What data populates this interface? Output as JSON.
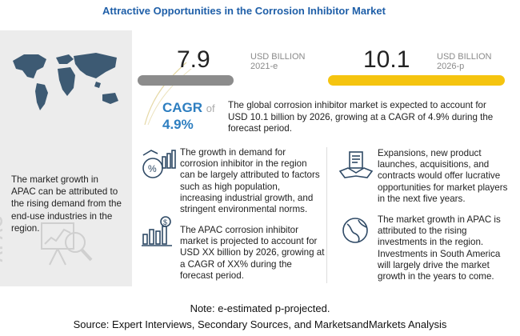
{
  "title": "Attractive Opportunities in the Corrosion Inhibitor Market",
  "left_panel": {
    "apac_text": "The market growth in APAC can be attributed to the rising demand from the end-use industries in the region.",
    "vertical_label": "APAC"
  },
  "metrics": {
    "value_2021": "7.9",
    "label_2021_unit": "USD BILLION",
    "label_2021_year": "2021-e",
    "value_2026": "10.1",
    "label_2026_unit": "USD BILLION",
    "label_2026_year": "2026-p"
  },
  "cagr": {
    "label": "CAGR",
    "of": "of",
    "value": "4.9%",
    "text": "The global corrosion inhibitor market is expected to account for USD 10.1 billion  by 2026, growing at a CAGR of 4.9% during the forecast period."
  },
  "cards": {
    "growth": "The growth in demand for corrosion inhibitor in the region can be largely attributed to factors such as high population, increasing industrial growth, and stringent environmental norms.",
    "apac_projection": "The APAC corrosion inhibitor market is projected to account for USD XX billion by 2026, growing at a CAGR of XX% during the forecast period.",
    "expansions": "Expansions, new product launches, acquisitions, and contracts would offer lucrative opportunities for market players in the next five years.",
    "investments": "The market growth in APAC is attributed to the rising investments in the region. Investments in South America will largely drive the market growth in the years to come."
  },
  "footer": {
    "note": "Note: e-estimated p-projected.",
    "source": "Source: Expert Interviews, Secondary Sources, and MarketsandMarkets Analysis"
  },
  "colors": {
    "title_blue": "#1f5fa8",
    "cagr_blue": "#2d7ec0",
    "yellow": "#f5c40f",
    "gray_pill": "#8c8c8c"
  }
}
